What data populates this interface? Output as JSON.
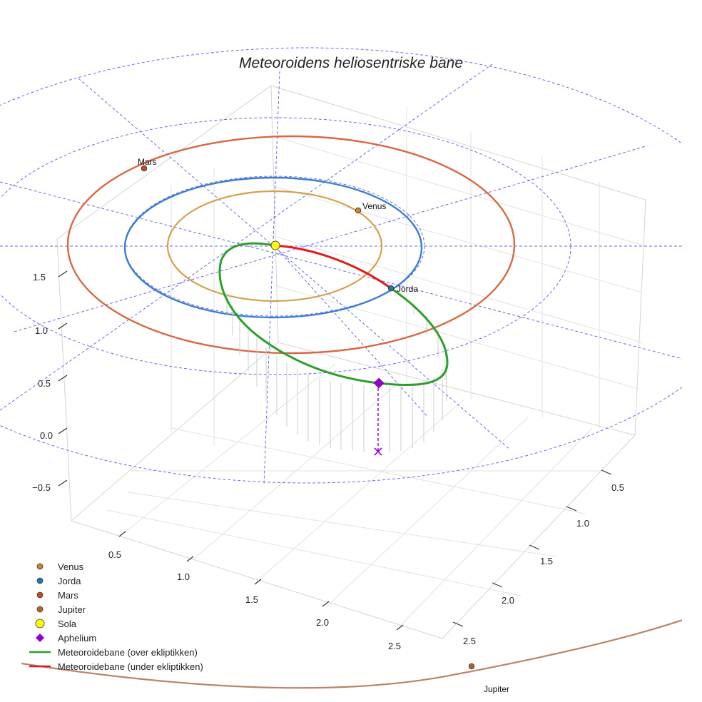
{
  "chart_data": {
    "type": "scatter",
    "title": "Meteoroidens heliosentriske bane",
    "axes": {
      "x_ticks": [
        "0.5",
        "1.0",
        "1.5",
        "2.0",
        "2.5"
      ],
      "y_ticks": [
        "0.5",
        "1.0",
        "1.5",
        "2.0",
        "2.5"
      ],
      "z_ticks": [
        "−0.5",
        "0.0",
        "0.5",
        "1.0",
        "1.5"
      ],
      "grid": true
    },
    "orbits": [
      {
        "name": "Venus",
        "radius_au": 0.72,
        "color": "#d4a04a"
      },
      {
        "name": "Jorda",
        "radius_au": 1.0,
        "color": "#3a7ecf"
      },
      {
        "name": "Mars",
        "radius_au": 1.52,
        "color": "#d96840"
      },
      {
        "name": "Jupiter",
        "radius_au": 5.2,
        "color": "#b8856a"
      }
    ],
    "bodies": [
      {
        "name": "Venus",
        "label": "Venus",
        "color": "#c8862a"
      },
      {
        "name": "Jorda",
        "label": "Jorda",
        "color": "#1f77b4"
      },
      {
        "name": "Mars",
        "label": "Mars",
        "color": "#c84a1e"
      },
      {
        "name": "Jupiter",
        "label": "Jupiter",
        "color": "#b5652c"
      },
      {
        "name": "Sola",
        "label": "",
        "color": "#ffff00"
      }
    ],
    "aphelion": {
      "label": "Aphelium",
      "color": "#9400d3"
    },
    "meteoroid_orbit": {
      "above_color": "#2ca02c",
      "below_color": "#e31a1c"
    },
    "legend": {
      "position": "bottom-left",
      "entries": [
        {
          "label": "Venus",
          "kind": "dot",
          "color": "#c8862a"
        },
        {
          "label": "Jorda",
          "kind": "dot",
          "color": "#1f77b4"
        },
        {
          "label": "Mars",
          "kind": "dot",
          "color": "#c84a1e"
        },
        {
          "label": "Jupiter",
          "kind": "dot",
          "color": "#b5652c"
        },
        {
          "label": "Sola",
          "kind": "sun",
          "color": "#ffff00"
        },
        {
          "label": "Aphelium",
          "kind": "diamond",
          "color": "#9400d3"
        },
        {
          "label": "Meteoroidebane (over ekliptikken)",
          "kind": "line",
          "color": "#2ca02c"
        },
        {
          "label": "Meteoroidebane (under ekliptikken)",
          "kind": "line",
          "color": "#e31a1c"
        }
      ]
    }
  }
}
